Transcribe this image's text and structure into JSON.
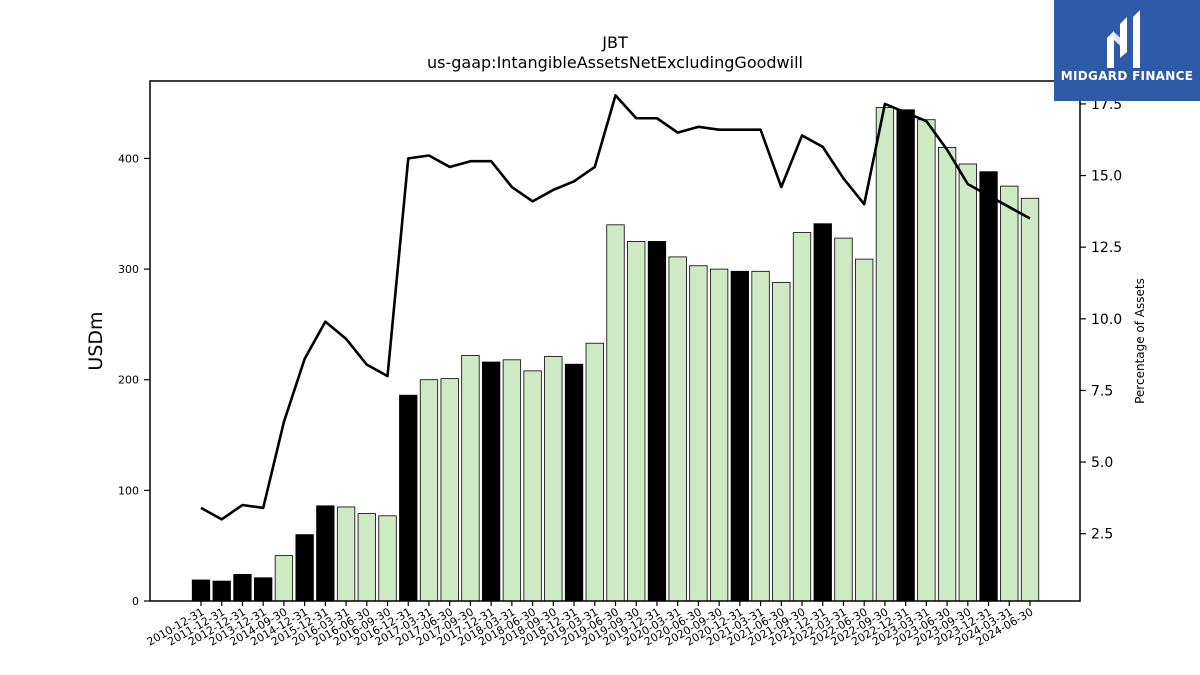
{
  "header": {
    "ticker": "JBT",
    "concept": "us-gaap:IntangibleAssetsNetExcludingGoodwill"
  },
  "logo": {
    "text": "MIDGARD FINANCE",
    "color": "#2e5aa8"
  },
  "chart_data": {
    "type": "bar",
    "title": "JBT",
    "subtitle": "us-gaap:IntangibleAssetsNetExcludingGoodwill",
    "ylabel": "USDm",
    "y2label": "Percentage of Assets",
    "ylim": [
      0,
      470
    ],
    "y2lim": [
      0.15,
      18.3
    ],
    "yticks": [
      0,
      100,
      200,
      300,
      400
    ],
    "y2ticks": [
      2.5,
      5.0,
      7.5,
      10.0,
      12.5,
      15.0,
      17.5
    ],
    "grid": false,
    "colors": {
      "annual": "#000000",
      "quarterly": "#cdeac4",
      "line": "#000000"
    },
    "categories": [
      "2010-12-31",
      "2011-12-31",
      "2012-12-31",
      "2013-12-31",
      "2014-09-30",
      "2014-12-31",
      "2015-12-31",
      "2016-03-31",
      "2016-06-30",
      "2016-09-30",
      "2016-12-31",
      "2017-03-31",
      "2017-06-30",
      "2017-09-30",
      "2017-12-31",
      "2018-03-31",
      "2018-06-30",
      "2018-09-30",
      "2018-12-31",
      "2019-03-31",
      "2019-06-30",
      "2019-09-30",
      "2019-12-31",
      "2020-03-31",
      "2020-06-30",
      "2020-09-30",
      "2020-12-31",
      "2021-03-31",
      "2021-06-30",
      "2021-09-30",
      "2021-12-31",
      "2022-03-31",
      "2022-06-30",
      "2022-09-30",
      "2022-12-31",
      "2023-03-31",
      "2023-06-30",
      "2023-09-30",
      "2023-12-31",
      "2024-03-31",
      "2024-06-30"
    ],
    "bars": [
      {
        "date": "2010-12-31",
        "value": 19,
        "type": "annual"
      },
      {
        "date": "2011-12-31",
        "value": 18,
        "type": "annual"
      },
      {
        "date": "2012-12-31",
        "value": 24,
        "type": "annual"
      },
      {
        "date": "2013-12-31",
        "value": 21,
        "type": "annual"
      },
      {
        "date": "2014-09-30",
        "value": 41,
        "type": "quarterly"
      },
      {
        "date": "2014-12-31",
        "value": 60,
        "type": "annual"
      },
      {
        "date": "2015-12-31",
        "value": 86,
        "type": "annual"
      },
      {
        "date": "2016-03-31",
        "value": 85,
        "type": "quarterly"
      },
      {
        "date": "2016-06-30",
        "value": 79,
        "type": "quarterly"
      },
      {
        "date": "2016-09-30",
        "value": 77,
        "type": "quarterly"
      },
      {
        "date": "2016-12-31",
        "value": 186,
        "type": "annual"
      },
      {
        "date": "2017-03-31",
        "value": 200,
        "type": "quarterly"
      },
      {
        "date": "2017-06-30",
        "value": 201,
        "type": "quarterly"
      },
      {
        "date": "2017-09-30",
        "value": 222,
        "type": "quarterly"
      },
      {
        "date": "2017-12-31",
        "value": 216,
        "type": "annual"
      },
      {
        "date": "2018-03-31",
        "value": 218,
        "type": "quarterly"
      },
      {
        "date": "2018-06-30",
        "value": 208,
        "type": "quarterly"
      },
      {
        "date": "2018-09-30",
        "value": 221,
        "type": "quarterly"
      },
      {
        "date": "2018-12-31",
        "value": 214,
        "type": "annual"
      },
      {
        "date": "2019-03-31",
        "value": 233,
        "type": "quarterly"
      },
      {
        "date": "2019-06-30",
        "value": 340,
        "type": "quarterly"
      },
      {
        "date": "2019-09-30",
        "value": 325,
        "type": "quarterly"
      },
      {
        "date": "2019-12-31",
        "value": 325,
        "type": "annual"
      },
      {
        "date": "2020-03-31",
        "value": 311,
        "type": "quarterly"
      },
      {
        "date": "2020-06-30",
        "value": 303,
        "type": "quarterly"
      },
      {
        "date": "2020-09-30",
        "value": 300,
        "type": "quarterly"
      },
      {
        "date": "2020-12-31",
        "value": 298,
        "type": "annual"
      },
      {
        "date": "2021-03-31",
        "value": 298,
        "type": "quarterly"
      },
      {
        "date": "2021-06-30",
        "value": 288,
        "type": "quarterly"
      },
      {
        "date": "2021-09-30",
        "value": 333,
        "type": "quarterly"
      },
      {
        "date": "2021-12-31",
        "value": 341,
        "type": "annual"
      },
      {
        "date": "2022-03-31",
        "value": 328,
        "type": "quarterly"
      },
      {
        "date": "2022-06-30",
        "value": 309,
        "type": "quarterly"
      },
      {
        "date": "2022-09-30",
        "value": 446,
        "type": "quarterly"
      },
      {
        "date": "2022-12-31",
        "value": 444,
        "type": "annual"
      },
      {
        "date": "2023-03-31",
        "value": 435,
        "type": "quarterly"
      },
      {
        "date": "2023-06-30",
        "value": 410,
        "type": "quarterly"
      },
      {
        "date": "2023-09-30",
        "value": 395,
        "type": "quarterly"
      },
      {
        "date": "2023-12-31",
        "value": 388,
        "type": "annual"
      },
      {
        "date": "2024-03-31",
        "value": 375,
        "type": "quarterly"
      },
      {
        "date": "2024-06-30",
        "value": 364,
        "type": "quarterly"
      }
    ],
    "line_pct": [
      3.4,
      3.0,
      3.5,
      3.4,
      6.4,
      8.6,
      9.9,
      9.3,
      8.4,
      8.0,
      15.6,
      15.7,
      15.3,
      15.5,
      15.5,
      14.6,
      14.1,
      14.5,
      14.8,
      15.3,
      17.8,
      17.0,
      17.0,
      16.5,
      16.7,
      16.6,
      16.6,
      16.6,
      14.6,
      16.4,
      16.0,
      14.9,
      14.0,
      17.5,
      17.2,
      16.9,
      15.9,
      14.7,
      14.3,
      13.9,
      13.5
    ]
  }
}
